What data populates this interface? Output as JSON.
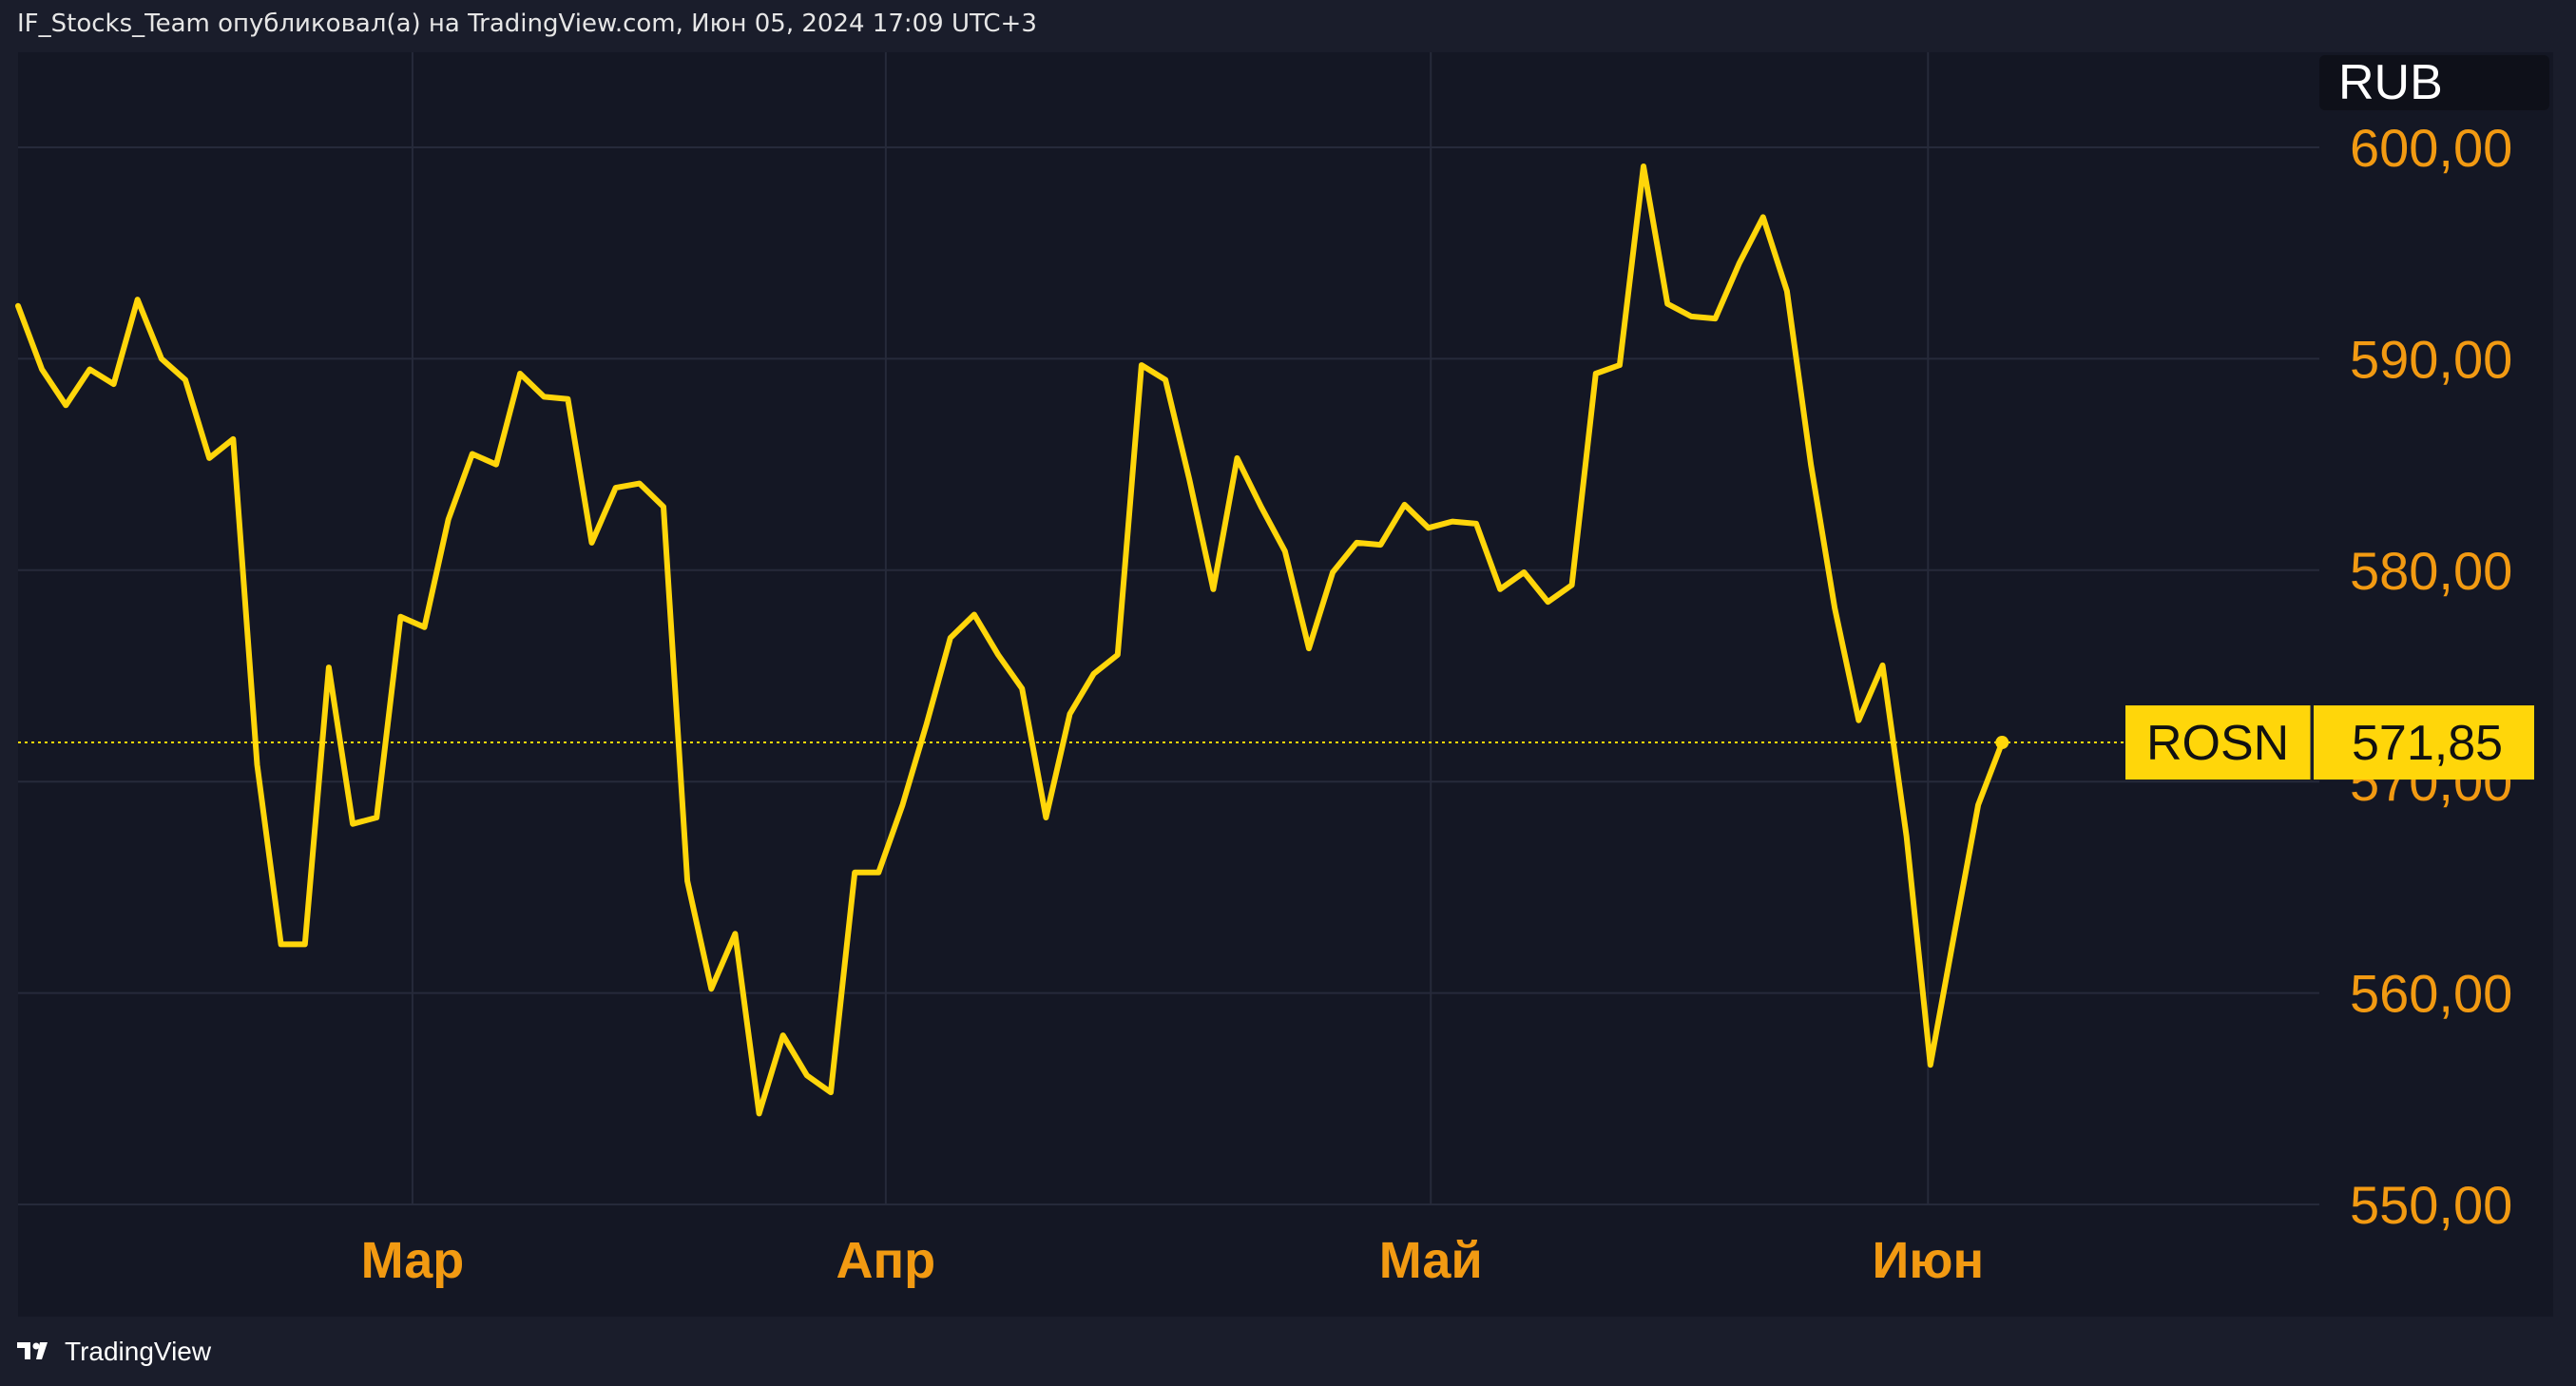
{
  "header": {
    "text": "IF_Stocks_Team опубликовал(а) на TradingView.com, Июн 05, 2024 17:09 UTC+3"
  },
  "footer": {
    "brand": "TradingView",
    "logo_icon": "tradingview-logo-icon"
  },
  "colors": {
    "background": "#1a1d2b",
    "plot_bg": "#141724",
    "grid": "#262a3a",
    "line": "#ffd60a",
    "axis_text": "#f29a12",
    "tag_bg": "#ffd60a"
  },
  "chart_data": {
    "type": "line",
    "currency": "RUB",
    "symbol": "ROSN",
    "last_price_label": "571,85",
    "last_price": 571.85,
    "ylim": [
      550,
      600
    ],
    "xlim": [
      0,
      88
    ],
    "grid": true,
    "y_ticks": [
      {
        "value": 600,
        "label": "600,00"
      },
      {
        "value": 590,
        "label": "590,00"
      },
      {
        "value": 580,
        "label": "580,00"
      },
      {
        "value": 570,
        "label": "570,00"
      },
      {
        "value": 560,
        "label": "560,00"
      },
      {
        "value": 550,
        "label": "550,00"
      }
    ],
    "x_ticks": [
      {
        "x": 16.5,
        "label": "Мар"
      },
      {
        "x": 36.3,
        "label": "Апр"
      },
      {
        "x": 59.1,
        "label": "Май"
      },
      {
        "x": 79.9,
        "label": "Июн"
      }
    ],
    "series": [
      {
        "values": [
          592.5,
          589.5,
          587.8,
          589.5,
          588.8,
          592.8,
          590,
          589,
          585.3,
          586.2,
          570.8,
          562.3,
          562.3,
          575.4,
          568,
          568.3,
          577.8,
          577.3,
          582.4,
          585.5,
          585,
          589.3,
          588.2,
          588.1,
          581.3,
          583.9,
          584.1,
          583,
          565.3,
          560.2,
          562.8,
          554.3,
          558,
          556.1,
          555.3,
          565.7,
          565.7,
          568.9,
          572.7,
          576.8,
          577.9,
          576,
          574.4,
          568.3,
          573.2,
          575.1,
          576,
          589.7,
          589,
          584.3,
          579.1,
          585.3,
          583,
          580.9,
          576.3,
          579.9,
          581.3,
          581.2,
          583.1,
          582,
          582.3,
          582.2,
          579.1,
          579.9,
          578.5,
          579.3,
          589.3,
          589.7,
          599.1,
          592.6,
          592,
          591.9,
          594.5,
          596.7,
          593.2,
          585,
          578.2,
          572.9,
          575.5,
          567.4,
          556.6,
          562.8,
          568.9,
          571.85
        ]
      }
    ]
  }
}
